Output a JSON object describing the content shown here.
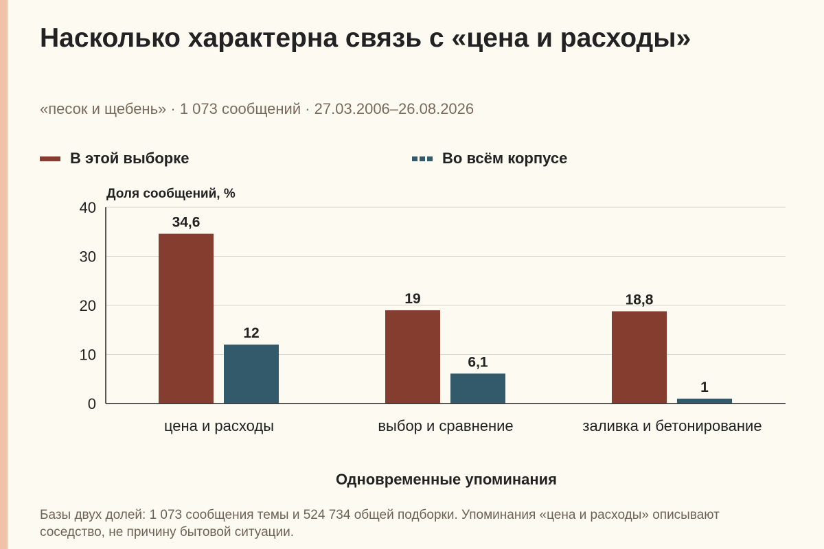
{
  "colors": {
    "sample": "#843d2f",
    "corpus": "#325a6a",
    "side_accent": "#f0c2a8",
    "grid": "#d9d6cf",
    "axis": "#222222"
  },
  "header": {
    "title": "Насколько характерна связь с «цена и расходы»",
    "subtitle": "«песок и щебень» · 1 073 сообщений · 27.03.2006–26.08.2026"
  },
  "legend": [
    {
      "label": "В этой выборке",
      "style": "solid"
    },
    {
      "label": "Во всём корпусе",
      "style": "dashed"
    }
  ],
  "footnote": "Базы двух долей: 1 073 сообщения темы и 524 734 общей подборки. Упоминания «цена и расходы» описывают соседство, не причину бытовой ситуации.",
  "chart_data": {
    "type": "bar",
    "title": "Насколько характерна связь с «цена и расходы»",
    "ylabel": "Доля сообщений, %",
    "xlabel": "Одновременные упоминания",
    "ylim": [
      0,
      40
    ],
    "yticks": [
      0,
      10,
      20,
      30,
      40
    ],
    "grid": true,
    "legend_position": "top-left",
    "categories": [
      "цена и расходы",
      "выбор и сравнение",
      "заливка и бетонирование"
    ],
    "series": [
      {
        "name": "В этой выборке",
        "values": [
          34.6,
          19,
          18.8
        ],
        "labels": [
          "34,6",
          "19",
          "18,8"
        ]
      },
      {
        "name": "Во всём корпусе",
        "values": [
          12,
          6.1,
          1
        ],
        "labels": [
          "12",
          "6,1",
          "1"
        ]
      }
    ]
  }
}
